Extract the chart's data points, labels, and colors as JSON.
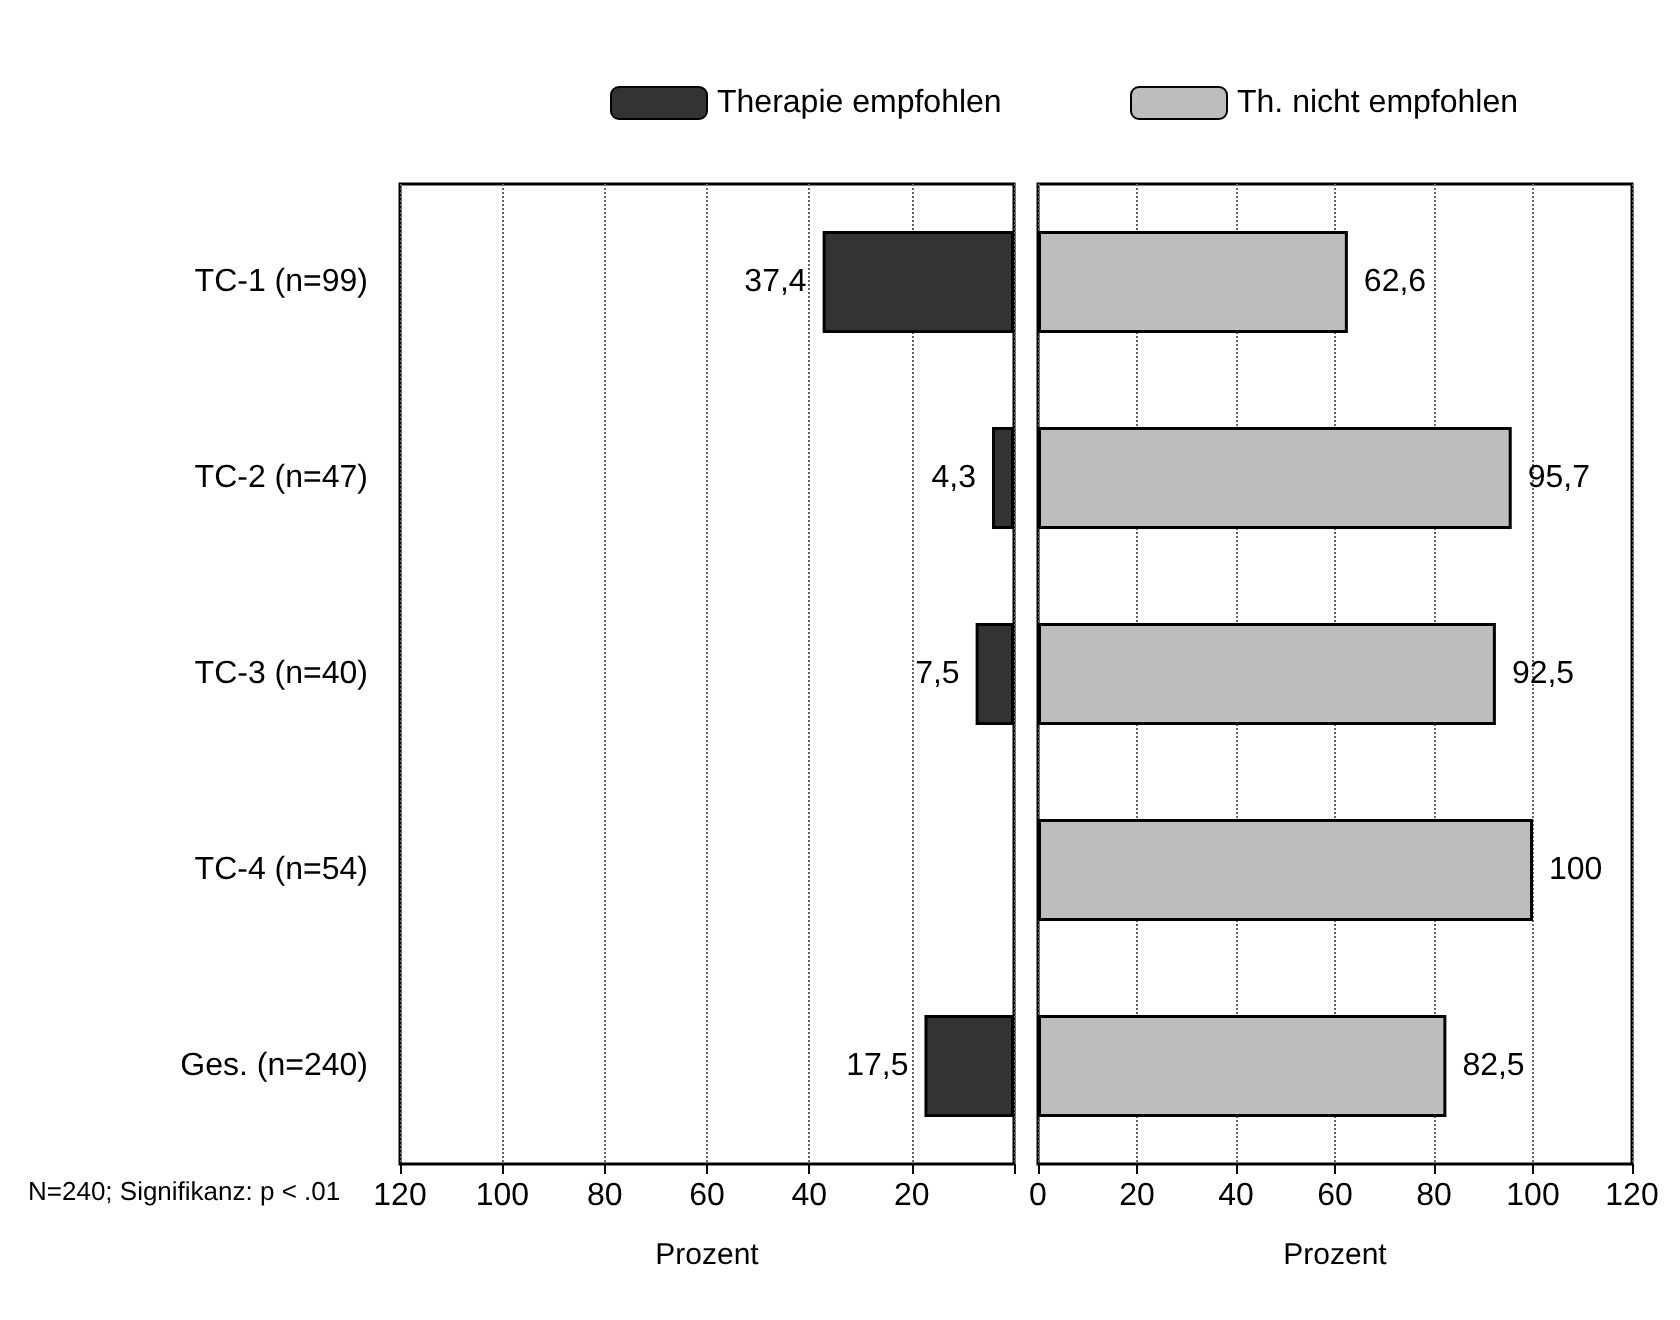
{
  "chart_data": [
    {
      "type": "bar",
      "orientation": "horizontal",
      "categories": [
        "TC-1 (n=99)",
        "TC-2 (n=47)",
        "TC-3 (n=40)",
        "TC-4 (n=54)",
        "Ges. (n=240)"
      ],
      "series": [
        {
          "name": "Therapie empfohlen",
          "color": "#333333",
          "values": [
            37.4,
            4.3,
            7.5,
            null,
            17.5
          ],
          "value_labels": [
            "37,4",
            "4,3",
            "7,5",
            null,
            "17,5"
          ]
        }
      ],
      "xlim": [
        120,
        0
      ],
      "xticks": [
        120,
        100,
        80,
        60,
        40,
        20,
        {
          "value": 0,
          "label": null
        }
      ],
      "xlabel": "Prozent",
      "grid": "x",
      "legend": "top",
      "annotations": [
        "N=240; Signifikanz: p < .01"
      ]
    },
    {
      "type": "bar",
      "orientation": "horizontal",
      "categories": [
        null,
        null,
        null,
        null,
        null
      ],
      "series": [
        {
          "name": "Th. nicht empfohlen",
          "color": "#bdbdbd",
          "values": [
            62.6,
            95.7,
            92.5,
            100,
            82.5
          ],
          "value_labels": [
            "62,6",
            "95,7",
            "92,5",
            "100",
            "82,5"
          ]
        }
      ],
      "xlim": [
        0,
        120
      ],
      "xticks": [
        0,
        20,
        40,
        60,
        80,
        100,
        120
      ],
      "xlabel": "Prozent",
      "grid": "x",
      "legend": "top"
    }
  ]
}
